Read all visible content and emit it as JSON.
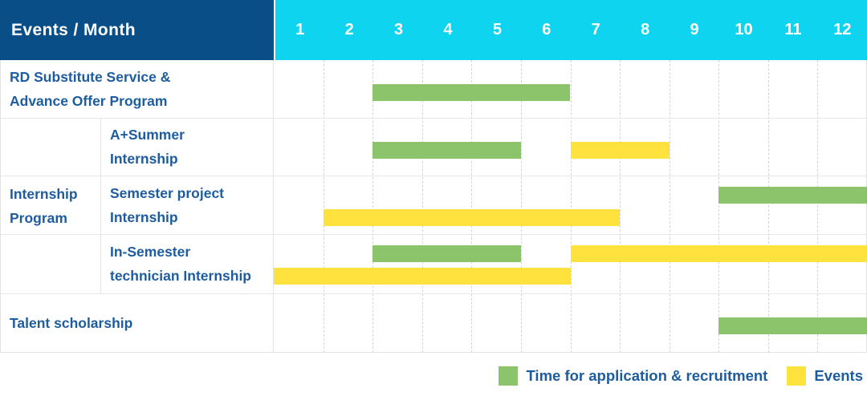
{
  "header": {
    "title": "Events / Month",
    "months": [
      "1",
      "2",
      "3",
      "4",
      "5",
      "6",
      "7",
      "8",
      "9",
      "10",
      "11",
      "12"
    ]
  },
  "group_label": "Internship\nProgram",
  "rows": [
    {
      "label": "RD Substitute Service &\nAdvance Offer Program",
      "bars": [
        {
          "color": "green",
          "from": 3,
          "to": 6,
          "lane": "center"
        }
      ]
    },
    {
      "label": "A+Summer\nInternship",
      "bars": [
        {
          "color": "green",
          "from": 3,
          "to": 5,
          "lane": "center"
        },
        {
          "color": "yellow",
          "from": 7,
          "to": 8,
          "lane": "center"
        }
      ]
    },
    {
      "label": "Semester project\nInternship",
      "bars": [
        {
          "color": "green",
          "from": 10,
          "to": 12,
          "lane": "upper"
        },
        {
          "color": "yellow",
          "from": 2,
          "to": 7,
          "lane": "lower"
        }
      ]
    },
    {
      "label": "In-Semester\ntechnician Internship",
      "bars": [
        {
          "color": "green",
          "from": 3,
          "to": 5,
          "lane": "upper"
        },
        {
          "color": "yellow",
          "from": 7,
          "to": 12,
          "lane": "upper"
        },
        {
          "color": "yellow",
          "from": 1,
          "to": 6,
          "lane": "lower"
        }
      ]
    },
    {
      "label": "Talent scholarship",
      "bars": [
        {
          "color": "green",
          "from": 10,
          "to": 12,
          "lane": "center"
        }
      ]
    }
  ],
  "legend": [
    {
      "color": "green",
      "label": "Time for application & recruitment"
    },
    {
      "color": "yellow",
      "label": "Events"
    }
  ],
  "colors": {
    "header_bg": "#0a4e88",
    "months_bg": "#0fd4ef",
    "green": "#8bc46b",
    "yellow": "#ffe23d",
    "text": "#1d5c9e"
  },
  "chart_data": {
    "type": "gantt",
    "title": "Events / Month",
    "x_axis": {
      "label": "Month",
      "ticks": [
        1,
        2,
        3,
        4,
        5,
        6,
        7,
        8,
        9,
        10,
        11,
        12
      ],
      "range": [
        1,
        12
      ]
    },
    "legend_entries": [
      "Time for application & recruitment",
      "Events"
    ],
    "legend_position": "bottom-right",
    "grid": "dashed-vertical-month-lines",
    "rows": [
      {
        "category": "RD Substitute Service & Advance Offer Program",
        "group": null,
        "spans": [
          {
            "series": "Time for application & recruitment",
            "start_month": 3,
            "end_month": 6
          }
        ]
      },
      {
        "category": "A+Summer Internship",
        "group": "Internship Program",
        "spans": [
          {
            "series": "Time for application & recruitment",
            "start_month": 3,
            "end_month": 5
          },
          {
            "series": "Events",
            "start_month": 7,
            "end_month": 8
          }
        ]
      },
      {
        "category": "Semester project Internship",
        "group": "Internship Program",
        "spans": [
          {
            "series": "Time for application & recruitment",
            "start_month": 10,
            "end_month": 12
          },
          {
            "series": "Events",
            "start_month": 2,
            "end_month": 7
          }
        ]
      },
      {
        "category": "In-Semester technician Internship",
        "group": "Internship Program",
        "spans": [
          {
            "series": "Time for application & recruitment",
            "start_month": 3,
            "end_month": 5
          },
          {
            "series": "Events",
            "start_month": 7,
            "end_month": 12
          },
          {
            "series": "Events",
            "start_month": 1,
            "end_month": 6
          }
        ]
      },
      {
        "category": "Talent scholarship",
        "group": null,
        "spans": [
          {
            "series": "Time for application & recruitment",
            "start_month": 10,
            "end_month": 12
          }
        ]
      }
    ]
  }
}
